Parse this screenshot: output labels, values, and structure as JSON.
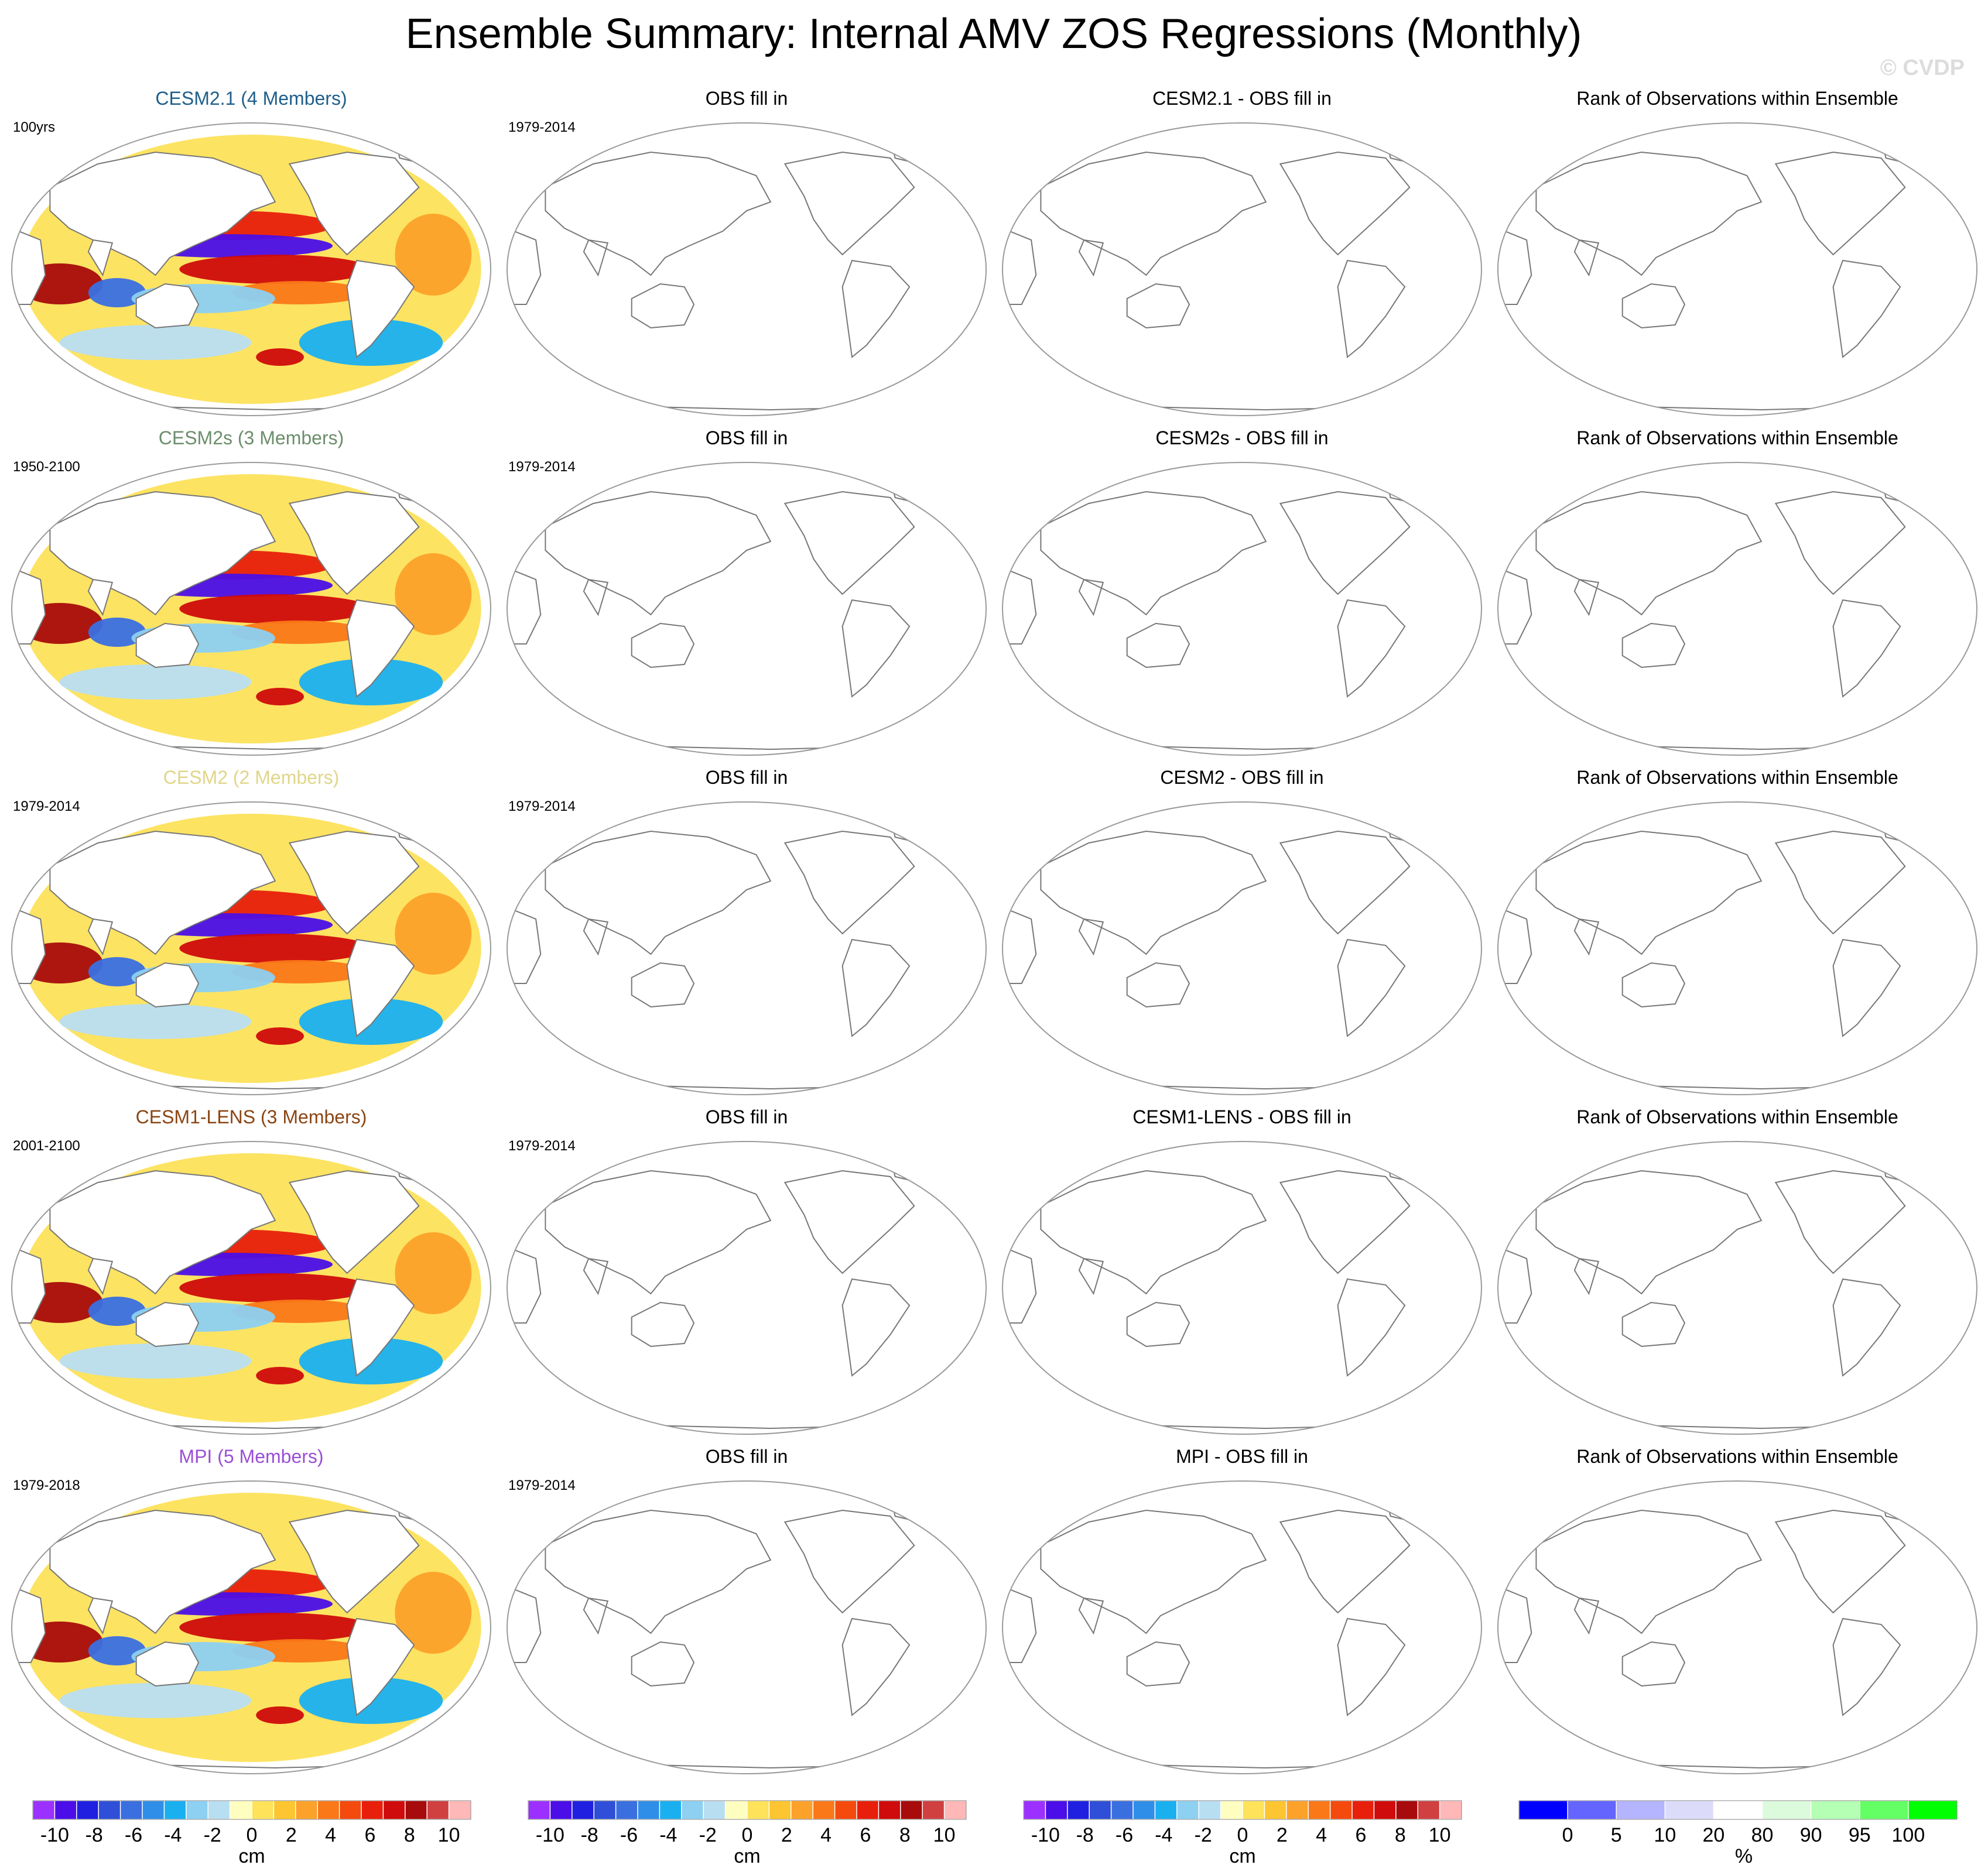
{
  "title": "Ensemble Summary: Internal AMV ZOS Regressions (Monthly)",
  "watermark": "© CVDP",
  "chart_data": {
    "type": "heatmap",
    "panel_grid": "5 rows x 4 columns of global map panels",
    "rows": [
      {
        "model": "CESM2.1 (4 Members)",
        "model_color": "#1f5f8b",
        "period": "100yrs",
        "obs_title": "OBS fill in",
        "obs_period": "1979-2014",
        "diff_title": "CESM2.1 - OBS fill in",
        "rank_title": "Rank of Observations within Ensemble"
      },
      {
        "model": "CESM2s (3 Members)",
        "model_color": "#6b8e6b",
        "period": "1950-2100",
        "obs_title": "OBS fill in",
        "obs_period": "1979-2014",
        "diff_title": "CESM2s - OBS fill in",
        "rank_title": "Rank of Observations within Ensemble"
      },
      {
        "model": "CESM2 (2 Members)",
        "model_color": "#e0d68a",
        "period": "1979-2014",
        "obs_title": "OBS fill in",
        "obs_period": "1979-2014",
        "diff_title": "CESM2 - OBS fill in",
        "rank_title": "Rank of Observations within Ensemble"
      },
      {
        "model": "CESM1-LENS (3 Members)",
        "model_color": "#8b4513",
        "period": "2001-2100",
        "obs_title": "OBS fill in",
        "obs_period": "1979-2014",
        "diff_title": "CESM1-LENS - OBS fill in",
        "rank_title": "Rank of Observations within Ensemble"
      },
      {
        "model": "MPI (5 Members)",
        "model_color": "#9a4fd6",
        "period": "1979-2018",
        "obs_title": "OBS fill in",
        "obs_period": "1979-2014",
        "diff_title": "MPI - OBS fill in",
        "rank_title": "Rank of Observations within Ensemble"
      }
    ],
    "colorbars": [
      {
        "unit": "cm",
        "ticks": [
          "-10",
          "-8",
          "-6",
          "-4",
          "-2",
          "0",
          "2",
          "4",
          "6",
          "8",
          "10"
        ],
        "colors": [
          "#9b30ff",
          "#4b0ee8",
          "#2020e0",
          "#2f4fd8",
          "#3a6fe0",
          "#2f8fe8",
          "#1ab0f0",
          "#8dd0f2",
          "#b8def2",
          "#fefec0",
          "#fde25a",
          "#fcc531",
          "#fca12a",
          "#fa7818",
          "#f44a0d",
          "#e81f0b",
          "#cf0b0b",
          "#a80b0b",
          "#d04040",
          "#ffb8b8"
        ]
      },
      {
        "unit": "cm",
        "ticks": [
          "-10",
          "-8",
          "-6",
          "-4",
          "-2",
          "0",
          "2",
          "4",
          "6",
          "8",
          "10"
        ],
        "colors": [
          "#9b30ff",
          "#4b0ee8",
          "#2020e0",
          "#2f4fd8",
          "#3a6fe0",
          "#2f8fe8",
          "#1ab0f0",
          "#8dd0f2",
          "#b8def2",
          "#fefec0",
          "#fde25a",
          "#fcc531",
          "#fca12a",
          "#fa7818",
          "#f44a0d",
          "#e81f0b",
          "#cf0b0b",
          "#a80b0b",
          "#d04040",
          "#ffb8b8"
        ]
      },
      {
        "unit": "cm",
        "ticks": [
          "-10",
          "-8",
          "-6",
          "-4",
          "-2",
          "0",
          "2",
          "4",
          "6",
          "8",
          "10"
        ],
        "colors": [
          "#9b30ff",
          "#4b0ee8",
          "#2020e0",
          "#2f4fd8",
          "#3a6fe0",
          "#2f8fe8",
          "#1ab0f0",
          "#8dd0f2",
          "#b8def2",
          "#fefec0",
          "#fde25a",
          "#fcc531",
          "#fca12a",
          "#fa7818",
          "#f44a0d",
          "#e81f0b",
          "#cf0b0b",
          "#a80b0b",
          "#d04040",
          "#ffb8b8"
        ]
      },
      {
        "unit": "%",
        "ticks": [
          "0",
          "5",
          "10",
          "20",
          "80",
          "90",
          "95",
          "100"
        ],
        "colors": [
          "#0000ff",
          "#6464ff",
          "#b4b4ff",
          "#dcdcfa",
          "#ffffff",
          "#dcfadc",
          "#b4ffb4",
          "#64ff64",
          "#00ff00"
        ]
      }
    ]
  }
}
